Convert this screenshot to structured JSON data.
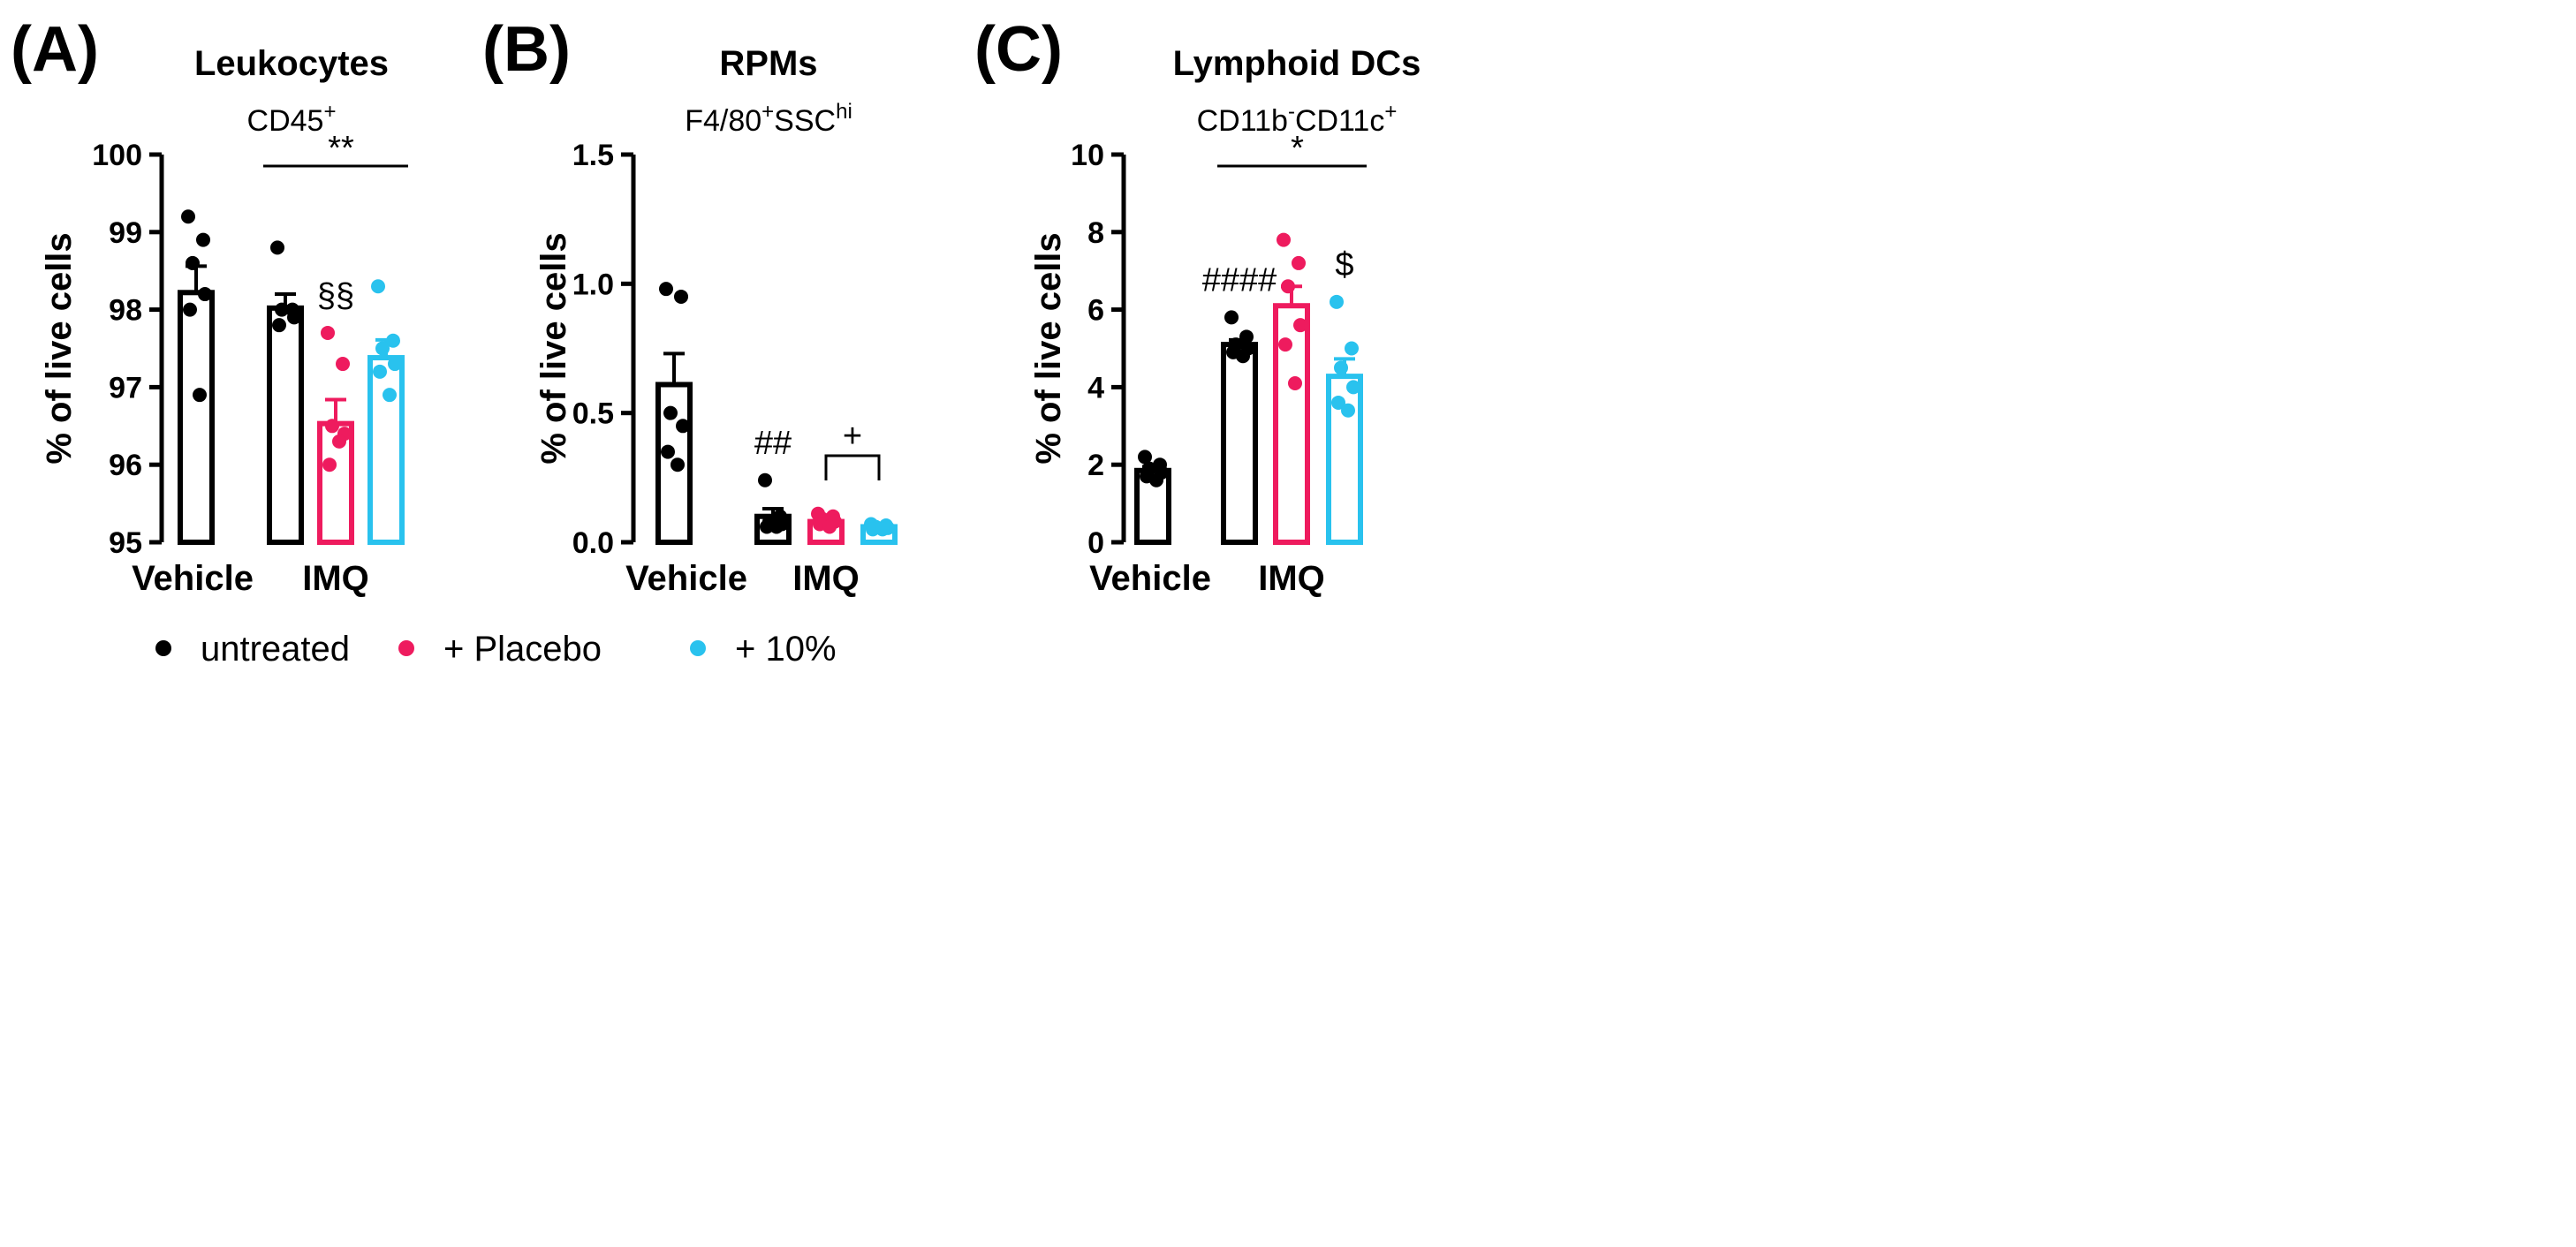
{
  "colors": {
    "untreated": "#000000",
    "placebo": "#ee1b5e",
    "ten_percent": "#29c2ee"
  },
  "legend": {
    "position": "bottom",
    "items": [
      {
        "key": "untreated",
        "label": "untreated",
        "color": "#000000"
      },
      {
        "key": "placebo",
        "label": "+ Placebo",
        "color": "#ee1b5e"
      },
      {
        "key": "ten_percent",
        "label": "+ 10%",
        "color": "#29c2ee"
      }
    ]
  },
  "chart_data": [
    {
      "type": "bar",
      "panel": "(A)",
      "title": "Leukocytes",
      "subtitle": {
        "base": "CD45",
        "sup": "+"
      },
      "ylabel": "% of live cells",
      "ylim": [
        95,
        100
      ],
      "yticks": [
        "95",
        "96",
        "97",
        "98",
        "99",
        "100"
      ],
      "groups": [
        {
          "label": "Vehicle",
          "bars": [
            0
          ]
        },
        {
          "label": "IMQ",
          "bars": [
            1,
            2,
            3
          ]
        }
      ],
      "bars": [
        {
          "series": "untreated",
          "group": "Vehicle",
          "mean": 98.22,
          "sem": 0.34,
          "points": [
            99.2,
            98.9,
            98.6,
            98.2,
            98.0,
            96.9
          ]
        },
        {
          "series": "untreated",
          "group": "IMQ",
          "mean": 98.02,
          "sem": 0.18,
          "points": [
            98.8,
            98.0,
            98.0,
            97.9,
            97.8
          ]
        },
        {
          "series": "placebo",
          "group": "IMQ",
          "mean": 96.53,
          "sem": 0.31,
          "points": [
            97.7,
            97.3,
            96.5,
            96.4,
            96.0,
            96.3
          ],
          "annotation": "§§"
        },
        {
          "series": "ten_percent",
          "group": "IMQ",
          "mean": 97.38,
          "sem": 0.23,
          "points": [
            98.3,
            97.6,
            97.5,
            97.3,
            97.2,
            96.9
          ]
        }
      ],
      "significance": [
        {
          "from": 1,
          "to": 3,
          "label": "**",
          "bracket": false
        }
      ]
    },
    {
      "type": "bar",
      "panel": "(B)",
      "title": "RPMs",
      "subtitle": {
        "base": "F4/80",
        "sup": "+",
        "base2": "SSC",
        "sup2": "hi"
      },
      "ylabel": "% of live cells",
      "ylim": [
        0,
        1.5
      ],
      "yticks": [
        "0.0",
        "0.5",
        "1.0",
        "1.5"
      ],
      "groups": [
        {
          "label": "Vehicle",
          "bars": [
            0
          ]
        },
        {
          "label": "IMQ",
          "bars": [
            1,
            2,
            3
          ]
        }
      ],
      "bars": [
        {
          "series": "untreated",
          "group": "Vehicle",
          "mean": 0.61,
          "sem": 0.12,
          "points": [
            0.98,
            0.95,
            0.5,
            0.45,
            0.35,
            0.3
          ]
        },
        {
          "series": "untreated",
          "group": "IMQ",
          "mean": 0.1,
          "sem": 0.03,
          "points": [
            0.24,
            0.1,
            0.08,
            0.07,
            0.06,
            0.06
          ],
          "annotation": "##"
        },
        {
          "series": "placebo",
          "group": "IMQ",
          "mean": 0.08,
          "sem": 0.01,
          "points": [
            0.11,
            0.1,
            0.09,
            0.08,
            0.07,
            0.06
          ]
        },
        {
          "series": "ten_percent",
          "group": "IMQ",
          "mean": 0.06,
          "sem": 0.005,
          "points": [
            0.07,
            0.065,
            0.06,
            0.055,
            0.05,
            0.05
          ]
        }
      ],
      "significance": [
        {
          "from": 2,
          "to": 3,
          "label": "+",
          "bracket": true
        }
      ]
    },
    {
      "type": "bar",
      "panel": "(C)",
      "title": "Lymphoid DCs",
      "subtitle": {
        "base": "CD11b",
        "sup": "-",
        "base2": "CD11c",
        "sup2": "+"
      },
      "ylabel": "% of live cells",
      "ylim": [
        0,
        10
      ],
      "yticks": [
        "0",
        "2",
        "4",
        "6",
        "8",
        "10"
      ],
      "groups": [
        {
          "label": "Vehicle",
          "bars": [
            0
          ]
        },
        {
          "label": "IMQ",
          "bars": [
            1,
            2,
            3
          ]
        }
      ],
      "bars": [
        {
          "series": "untreated",
          "group": "Vehicle",
          "mean": 1.85,
          "sem": 0.1,
          "points": [
            2.2,
            2.0,
            1.9,
            1.8,
            1.7,
            1.6
          ]
        },
        {
          "series": "untreated",
          "group": "IMQ",
          "mean": 5.1,
          "sem": 0.12,
          "points": [
            5.8,
            5.3,
            5.1,
            5.0,
            4.9,
            4.8
          ],
          "annotation": "####"
        },
        {
          "series": "placebo",
          "group": "IMQ",
          "mean": 6.1,
          "sem": 0.5,
          "points": [
            7.8,
            7.2,
            6.6,
            5.6,
            5.1,
            4.1
          ]
        },
        {
          "series": "ten_percent",
          "group": "IMQ",
          "mean": 4.28,
          "sem": 0.45,
          "points": [
            6.2,
            5.0,
            4.5,
            4.0,
            3.6,
            3.4
          ],
          "annotation": "$"
        }
      ],
      "significance": [
        {
          "from": 1,
          "to": 3,
          "label": "*",
          "bracket": false
        }
      ]
    }
  ]
}
